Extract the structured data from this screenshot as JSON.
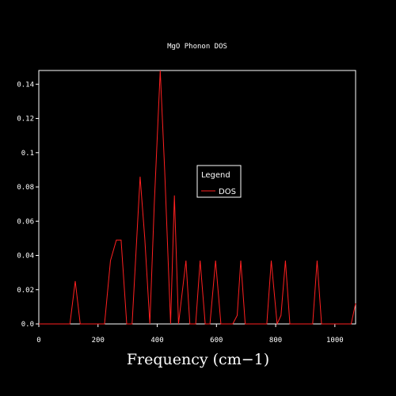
{
  "chart_data": {
    "type": "line",
    "title": "MgO Phonon DOS",
    "xlabel": "Frequency (cm−1)",
    "ylabel": "",
    "xlim": [
      0,
      1070
    ],
    "ylim": [
      0,
      0.148
    ],
    "grid": false,
    "legend": {
      "title": "Legend",
      "placement": "center-right"
    },
    "x_ticks": [
      0,
      200,
      400,
      600,
      800,
      1000
    ],
    "x_tick_labels": [
      "0",
      "200",
      "400",
      "600",
      "800",
      "1000"
    ],
    "y_ticks": [
      0,
      0.02,
      0.04,
      0.06,
      0.08,
      0.1,
      0.12,
      0.14
    ],
    "y_tick_labels": [
      "0.0",
      "0.02",
      "0.04",
      "0.06",
      "0.08",
      "0.1",
      "0.12",
      "0.14"
    ],
    "series": [
      {
        "name": "DOS",
        "color": "#ff2020",
        "points": [
          [
            0,
            0
          ],
          [
            105,
            0
          ],
          [
            123,
            0.025
          ],
          [
            140,
            0
          ],
          [
            222,
            0
          ],
          [
            242,
            0.037
          ],
          [
            262,
            0.049
          ],
          [
            278,
            0.049
          ],
          [
            297,
            0
          ],
          [
            315,
            0
          ],
          [
            342,
            0.086
          ],
          [
            358,
            0.05
          ],
          [
            375,
            0
          ],
          [
            390,
            0.07
          ],
          [
            410,
            0.149
          ],
          [
            425,
            0.09
          ],
          [
            445,
            0
          ],
          [
            458,
            0.075
          ],
          [
            472,
            0
          ],
          [
            497,
            0.037
          ],
          [
            510,
            0
          ],
          [
            530,
            0
          ],
          [
            545,
            0.037
          ],
          [
            562,
            0
          ],
          [
            578,
            0
          ],
          [
            597,
            0.037
          ],
          [
            615,
            0
          ],
          [
            655,
            0
          ],
          [
            670,
            0.005
          ],
          [
            682,
            0.037
          ],
          [
            697,
            0
          ],
          [
            770,
            0
          ],
          [
            785,
            0.037
          ],
          [
            805,
            0
          ],
          [
            818,
            0.005
          ],
          [
            833,
            0.037
          ],
          [
            848,
            0
          ],
          [
            925,
            0
          ],
          [
            940,
            0.037
          ],
          [
            955,
            0
          ],
          [
            1055,
            0
          ],
          [
            1070,
            0.012
          ]
        ]
      }
    ]
  }
}
